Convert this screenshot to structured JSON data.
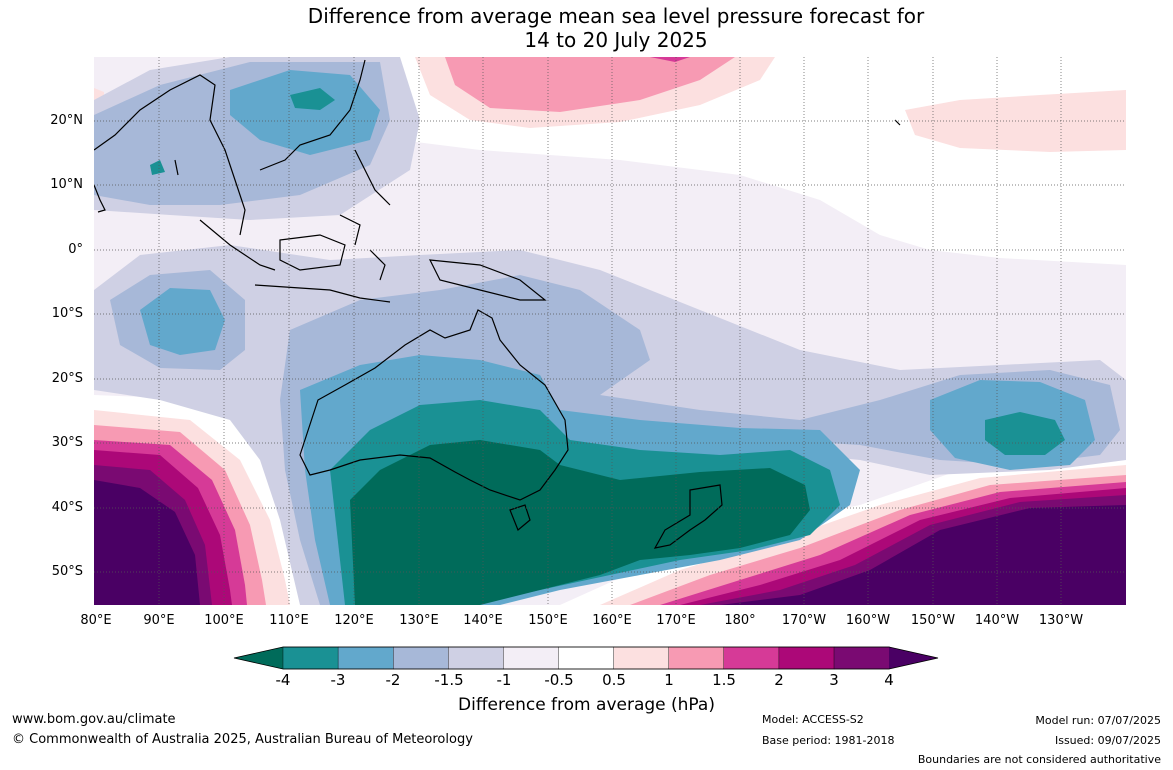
{
  "title": {
    "line1": "Difference from average mean sea level pressure forecast for",
    "line2": "14 to 20 July 2025"
  },
  "map": {
    "lat_labels": [
      "20°N",
      "10°N",
      "0°",
      "10°S",
      "20°S",
      "30°S",
      "40°S",
      "50°S"
    ],
    "lon_labels": [
      "80°E",
      "90°E",
      "100°E",
      "110°E",
      "120°E",
      "130°E",
      "140°E",
      "150°E",
      "160°E",
      "170°E",
      "180°",
      "170°W",
      "160°W",
      "150°W",
      "140°W",
      "130°W"
    ],
    "grid": "on"
  },
  "colorbar": {
    "labels": [
      "-4",
      "-3",
      "-2",
      "-1.5",
      "-1",
      "-0.5",
      "0.5",
      "1",
      "1.5",
      "2",
      "3",
      "4"
    ],
    "colors": [
      "#006b5a",
      "#1a9194",
      "#62a8cc",
      "#a7b8d8",
      "#cfd0e4",
      "#f3eef6",
      "#ffffff",
      "#fce0e0",
      "#f79ab3",
      "#d63a97",
      "#ac0878",
      "#7a0a72",
      "#4a0064"
    ],
    "title": "Difference from average (hPa)"
  },
  "footer": {
    "url": "www.bom.gov.au/climate",
    "copyright": "© Commonwealth of Australia 2025, Australian Bureau of Meteorology",
    "model": "Model: ACCESS-S2",
    "base_period": "Base period: 1981-2018",
    "model_run": "Model run: 07/07/2025",
    "issued": "Issued: 09/07/2025",
    "disclaimer": "Boundaries are not considered authoritative"
  }
}
